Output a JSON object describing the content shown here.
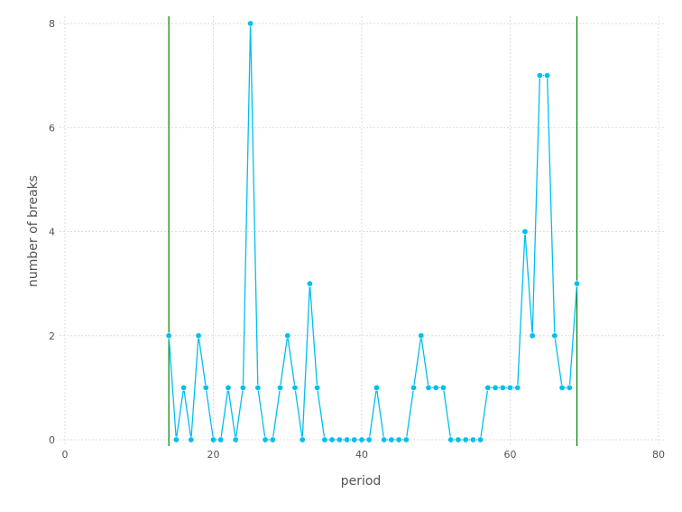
{
  "chart_data": {
    "type": "line",
    "title": "",
    "xlabel": "period",
    "ylabel": "number of breaks",
    "xlim": [
      0,
      80
    ],
    "ylim": [
      0,
      8
    ],
    "x_ticks": [
      "0",
      "20",
      "40",
      "60",
      "80"
    ],
    "y_ticks": [
      "0",
      "2",
      "4",
      "6",
      "8"
    ],
    "grid": true,
    "legend": "none",
    "series": [
      {
        "color": "#00bfee",
        "x": [
          14,
          15,
          16,
          17,
          18,
          19,
          20,
          21,
          22,
          23,
          24,
          25,
          26,
          27,
          28,
          29,
          30,
          31,
          32,
          33,
          34,
          35,
          36,
          37,
          38,
          39,
          40,
          41,
          42,
          43,
          44,
          45,
          46,
          47,
          48,
          49,
          50,
          51,
          52,
          53,
          54,
          55,
          56,
          57,
          58,
          59,
          60,
          61,
          62,
          63,
          64,
          65,
          66,
          67,
          68,
          69
        ],
        "values": [
          2,
          0,
          1,
          0,
          2,
          1,
          0,
          0,
          1,
          0,
          1,
          8,
          1,
          0,
          0,
          1,
          2,
          1,
          0,
          3,
          1,
          0,
          0,
          0,
          0,
          0,
          0,
          0,
          1,
          0,
          0,
          0,
          0,
          1,
          2,
          1,
          1,
          1,
          0,
          0,
          0,
          0,
          0,
          1,
          1,
          1,
          1,
          1,
          4,
          2,
          7,
          7,
          2,
          1,
          1,
          3
        ]
      }
    ],
    "vertical_lines": [
      {
        "x": 14,
        "color": "#008000"
      },
      {
        "x": 69,
        "color": "#008000"
      }
    ]
  }
}
